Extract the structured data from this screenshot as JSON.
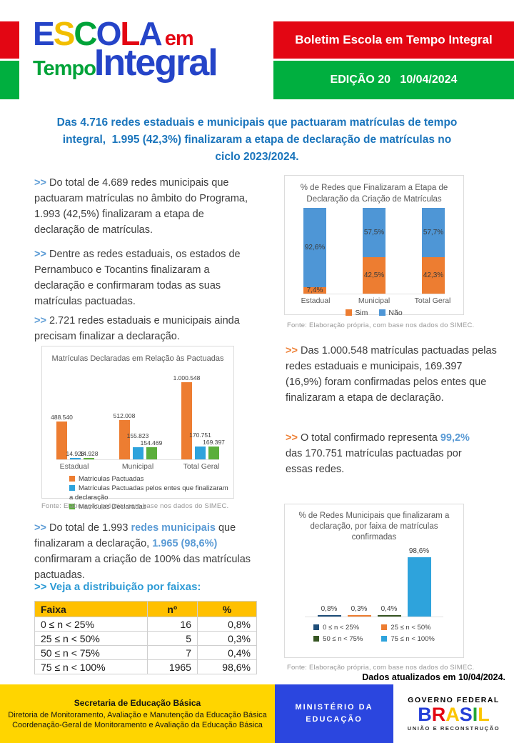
{
  "colors": {
    "brand_red": "#E30613",
    "brand_green": "#00AF3F",
    "headline_blue": "#1B75BC",
    "accent_blue": "#5B9BD5",
    "accent_orange": "#ED7D31",
    "cyan_blue": "#2EA3DC",
    "bar_green": "#5BAE3B",
    "navy": "#1F4E79",
    "dark_green": "#375623",
    "table_header_yellow": "#FFC000",
    "footer_yellow": "#FFD500",
    "footer_blue": "#2B46DF"
  },
  "header": {
    "logo": {
      "escola_letters": [
        {
          "ch": "E",
          "color": "#2544C8"
        },
        {
          "ch": "S",
          "color": "#F2BE00"
        },
        {
          "ch": "C",
          "color": "#00A339"
        },
        {
          "ch": "O",
          "color": "#2544C8"
        },
        {
          "ch": "L",
          "color": "#E30613"
        },
        {
          "ch": "A",
          "color": "#2544C8"
        }
      ],
      "em": "em",
      "tempo": "Tempo",
      "integral": "Integral"
    },
    "boletim": "Boletim Escola em Tempo Integral",
    "edicao": "EDIÇÃO 20   10/04/2024"
  },
  "headline_lines": [
    "Das 4.716 redes estaduais e municipais que pactuaram matrículas de tempo",
    "integral,  1.995 (42,3%) finalizaram a etapa de declaração de matrículas no",
    "ciclo 2023/2024."
  ],
  "left_paragraphs": [
    {
      "segments": [
        {
          "t": ">> ",
          "c": "mb"
        },
        {
          "t": "Do total de 4.689 redes municipais que pactuaram matrículas no âmbito do Programa, 1.993 (42,5%) finalizaram a etapa de declaração de matrículas.",
          "c": ""
        }
      ]
    },
    {
      "segments": [
        {
          "t": ">> ",
          "c": "mb"
        },
        {
          "t": "Dentre as redes estaduais, os estados de Pernambuco e Tocantins finalizaram a declaração e confirmaram todas as suas matrículas pactuadas.",
          "c": ""
        }
      ]
    },
    {
      "segments": [
        {
          "t": ">> ",
          "c": "mb"
        },
        {
          "t": "2.721 redes estaduais e municipais ainda precisam finalizar a declaração.",
          "c": ""
        }
      ]
    }
  ],
  "right_paragraphs": [
    {
      "segments": [
        {
          "t": ">> ",
          "c": "mo"
        },
        {
          "t": "Das 1.000.548 matrículas pactuadas pelas redes estaduais e municipais, 169.397 (16,9%) foram confirmadas pelos entes que finalizaram a etapa de declaração.",
          "c": ""
        }
      ]
    },
    {
      "segments": [
        {
          "t": ">> ",
          "c": "mo"
        },
        {
          "t": "O total confirmado representa ",
          "c": ""
        },
        {
          "t": "99,2%",
          "c": "bb"
        },
        {
          "t": " das 170.751 matrículas pactuadas por essas redes.",
          "c": ""
        }
      ]
    }
  ],
  "bottom_left_paragraph": {
    "segments": [
      {
        "t": ">> ",
        "c": "mb"
      },
      {
        "t": "Do total de 1.993 ",
        "c": ""
      },
      {
        "t": "redes municipais",
        "c": "bb"
      },
      {
        "t": " que finalizaram a declaração, ",
        "c": ""
      },
      {
        "t": "1.965 (98,6%)",
        "c": "bb"
      },
      {
        "t": " confirmaram a criação de 100% das matrículas pactuadas.",
        "c": ""
      }
    ]
  },
  "faixas_heading": ">> Veja a distribuição por faixas:",
  "chart_data": [
    {
      "type": "bar",
      "subtype": "stacked-100",
      "title": "% de Redes que Finalizaram a Etapa de Declaração da Criação de Matrículas",
      "categories": [
        "Estadual",
        "Municipal",
        "Total Geral"
      ],
      "series": [
        {
          "name": "Sim",
          "color": "#ED7D31",
          "values": [
            7.4,
            42.5,
            42.3
          ],
          "labels": [
            "7,4%",
            "42,5%",
            "42,3%"
          ]
        },
        {
          "name": "Não",
          "color": "#4E96D6",
          "values": [
            92.6,
            57.5,
            57.7
          ],
          "labels": [
            "92,6%",
            "57,5%",
            "57,7%"
          ]
        }
      ],
      "ylim": [
        0,
        100
      ],
      "legend_position": "bottom",
      "fonte": "Fonte: Elaboração  própria, com base nos dados do SIMEC."
    },
    {
      "type": "bar",
      "subtype": "grouped",
      "title": "Matrículas Declaradas em Relação às Pactuadas",
      "categories": [
        "Estadual",
        "Municipal",
        "Total Geral"
      ],
      "series": [
        {
          "name": "Matrículas Pactuadas",
          "color": "#ED7D31",
          "values": [
            488540,
            512008,
            1000548
          ],
          "labels": [
            "488.540",
            "512.008",
            "1.000.548"
          ],
          "label_raise": [
            0,
            0,
            0
          ]
        },
        {
          "name": "Matrículas Pactuadas pelos entes que finalizaram a declaração",
          "color": "#2EA3DC",
          "values": [
            14928,
            155823,
            170751
          ],
          "labels": [
            "14.928",
            "155.823",
            "170.751"
          ],
          "label_raise": [
            0,
            10,
            10
          ]
        },
        {
          "name": "Matrículas Declaradas",
          "color": "#5BAE3B",
          "values": [
            14928,
            154469,
            169397
          ],
          "labels": [
            "14.928",
            "154.469",
            "169.397"
          ],
          "label_raise": [
            0,
            0,
            0
          ]
        }
      ],
      "ylim": [
        0,
        1000548
      ],
      "legend_position": "bottom-left",
      "fonte": "Fonte: Elaboração  própria, com base nos dados do SIMEC."
    },
    {
      "type": "bar",
      "subtype": "simple",
      "title": "% de Redes Municipais que finalizaram a declaração, por faixa de matrículas confirmadas",
      "categories": [
        "0 ≤ n < 25%",
        "25 ≤ n < 50%",
        "50 ≤ n < 75%",
        "75 ≤ n < 100%"
      ],
      "values": [
        0.8,
        0.3,
        0.4,
        98.6
      ],
      "labels": [
        "0,8%",
        "0,3%",
        "0,4%",
        "98,6%"
      ],
      "colors": [
        "#1F4E79",
        "#ED7D31",
        "#375623",
        "#2EA3DC"
      ],
      "ylim": [
        0,
        100
      ],
      "legend_position": "bottom-grid",
      "fonte": "Fonte: Elaboração  própria, com base nos dados do SIMEC."
    }
  ],
  "table": {
    "headers": [
      "Faixa",
      "nº",
      "%"
    ],
    "rows": [
      [
        "0 ≤ n < 25%",
        "16",
        "0,8%"
      ],
      [
        "25 ≤ n < 50%",
        "5",
        "0,3%"
      ],
      [
        "50 ≤ n < 75%",
        "7",
        "0,4%"
      ],
      [
        "75 ≤ n < 100%",
        "1965",
        "98,6%"
      ]
    ]
  },
  "updated": "Dados atualizados em 10/04/2024.",
  "footer": {
    "secretaria_title": "Secretaria de Educação Básica",
    "secretaria_line2": "Diretoria de Monitoramento, Avaliação e Manutenção da Educação Básica",
    "secretaria_line3": "Coordenação-Geral de Monitoramento e Avaliação da Educação Básica",
    "ministerio_line1": "MINISTÉRIO DA",
    "ministerio_line2": "EDUCAÇÃO",
    "governo_federal": "GOVERNO FEDERAL",
    "brasil_letters": [
      {
        "ch": "B",
        "color": "#2640D8"
      },
      {
        "ch": "R",
        "color": "#E30613"
      },
      {
        "ch": "A",
        "color": "#FBC500"
      },
      {
        "ch": "S",
        "color": "#2640D8"
      },
      {
        "ch": "I",
        "color": "#23A638"
      },
      {
        "ch": "L",
        "color": "#FBC500"
      }
    ],
    "slogan": "UNIÃO E RECONSTRUÇÃO"
  }
}
